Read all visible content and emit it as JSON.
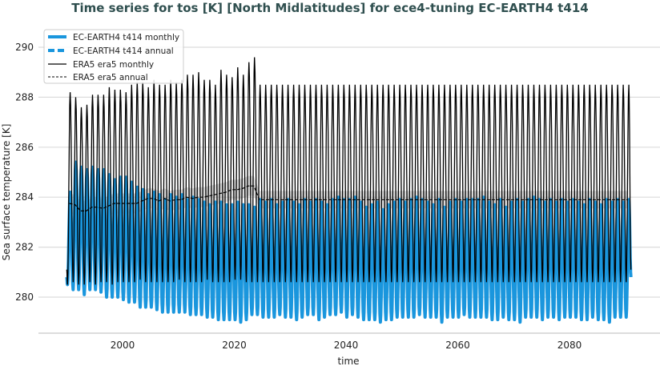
{
  "chart_data": {
    "type": "line",
    "title": "Time series for tos [K] [North Midlatitudes] for ece4-tuning EC-EARTH4 t414",
    "xlabel": "time",
    "ylabel": "Sea surface temperature [K]",
    "xlim": [
      1986,
      2097
    ],
    "ylim": [
      278.6,
      291.0
    ],
    "xticks": [
      "2000",
      "2020",
      "2040",
      "2060",
      "2080"
    ],
    "yticks": [
      "280",
      "282",
      "284",
      "286",
      "288",
      "290"
    ],
    "grid": "horizontal",
    "legend_position": "top-left",
    "colors": {
      "ece": "#1a96dd",
      "era5": "#000000",
      "title": "#2f4f4f"
    },
    "legend": [
      {
        "name": "EC-EARTH4 t414 monthly",
        "style": "solid-thick-blue"
      },
      {
        "name": "EC-EARTH4 t414 annual",
        "style": "dashed-thick-blue"
      },
      {
        "name": "ERA5 era5 monthly",
        "style": "solid-thin-black"
      },
      {
        "name": "ERA5 era5 annual",
        "style": "dashed-thin-black"
      }
    ],
    "year_start": 1990,
    "year_end": 2090,
    "series": [
      {
        "name": "EC-EARTH4 t414 monthly",
        "summary": "yearly seasonal maximum / minimum",
        "max": [
          284.2,
          285.4,
          285.2,
          285.1,
          285.2,
          285.1,
          285.1,
          284.9,
          284.7,
          284.8,
          284.8,
          284.6,
          284.4,
          284.3,
          284.1,
          284.2,
          284.1,
          283.9,
          284.1,
          284.0,
          284.1,
          283.9,
          284.0,
          283.9,
          283.8,
          283.7,
          283.8,
          283.8,
          283.7,
          283.7,
          283.8,
          283.7,
          283.7,
          283.6,
          283.9,
          283.8,
          283.9,
          283.7,
          283.8,
          283.9,
          283.8,
          283.7,
          283.9,
          283.8,
          283.9,
          283.8,
          283.7,
          283.9,
          284.0,
          283.9,
          283.9,
          284.0,
          283.8,
          283.6,
          283.7,
          283.8,
          283.5,
          283.7,
          283.8,
          283.9,
          283.8,
          283.9,
          284.0,
          283.9,
          283.8,
          283.7,
          283.9,
          283.6,
          283.8,
          283.9,
          283.8,
          283.9,
          283.9,
          283.9,
          284.0,
          283.8,
          283.7,
          283.9,
          283.6,
          283.8,
          283.9,
          283.8,
          283.9,
          284.0,
          283.9,
          283.8,
          283.9,
          283.8,
          283.9,
          283.8,
          283.9,
          283.8,
          283.7,
          283.9,
          283.8,
          283.7,
          283.9,
          283.8,
          283.9,
          283.8,
          283.9
        ],
        "min": [
          280.5,
          280.3,
          280.3,
          280.1,
          280.3,
          280.3,
          280.2,
          280.0,
          280.0,
          280.0,
          279.9,
          279.8,
          279.8,
          279.6,
          279.6,
          279.6,
          279.5,
          279.4,
          279.4,
          279.4,
          279.4,
          279.4,
          279.3,
          279.3,
          279.3,
          279.2,
          279.2,
          279.1,
          279.1,
          279.1,
          279.1,
          279.0,
          279.1,
          279.3,
          279.3,
          279.2,
          279.2,
          279.2,
          279.3,
          279.2,
          279.2,
          279.1,
          279.2,
          279.3,
          279.3,
          279.1,
          279.2,
          279.3,
          279.3,
          279.4,
          279.2,
          279.3,
          279.2,
          279.1,
          279.1,
          279.1,
          279.0,
          279.1,
          279.1,
          279.2,
          279.2,
          279.2,
          279.2,
          279.3,
          279.2,
          279.2,
          279.2,
          279.0,
          279.2,
          279.2,
          279.2,
          279.3,
          279.2,
          279.2,
          279.2,
          279.2,
          279.1,
          279.1,
          279.2,
          279.1,
          279.1,
          279.0,
          279.2,
          279.2,
          279.2,
          279.1,
          279.2,
          279.2,
          279.1,
          279.2,
          279.2,
          279.2,
          279.1,
          279.1,
          279.2,
          279.1,
          279.1,
          279.0,
          279.2,
          279.2,
          279.2
        ]
      },
      {
        "name": "ERA5 era5 monthly",
        "summary": "yearly seasonal maximum / minimum",
        "max": [
          288.2,
          288.0,
          287.6,
          287.7,
          288.1,
          288.1,
          288.1,
          288.4,
          288.3,
          288.3,
          288.2,
          288.5,
          288.6,
          288.6,
          288.4,
          288.7,
          288.5,
          288.5,
          288.7,
          288.6,
          288.7,
          288.9,
          288.9,
          289.0,
          288.7,
          288.7,
          288.5,
          289.1,
          288.9,
          288.8,
          289.2,
          288.9,
          289.4,
          289.6,
          288.5,
          288.5,
          288.5,
          288.5,
          288.5,
          288.5,
          288.5,
          288.5,
          288.5,
          288.5,
          288.5,
          288.5,
          288.5,
          288.5,
          288.5,
          288.5,
          288.5,
          288.5,
          288.5,
          288.5,
          288.5,
          288.5,
          288.5,
          288.5,
          288.5,
          288.5,
          288.5,
          288.5,
          288.5,
          288.5,
          288.5,
          288.5,
          288.5,
          288.5,
          288.5,
          288.5,
          288.5,
          288.5,
          288.5,
          288.5,
          288.5,
          288.5,
          288.5,
          288.5,
          288.5,
          288.5,
          288.5,
          288.5,
          288.5,
          288.5,
          288.5,
          288.5,
          288.5,
          288.5,
          288.5,
          288.5,
          288.5,
          288.5,
          288.5,
          288.5,
          288.5,
          288.5,
          288.5,
          288.5,
          288.5,
          288.5,
          288.5
        ],
        "min": [
          280.5,
          280.6,
          280.5,
          280.5,
          280.6,
          280.5,
          280.6,
          280.6,
          280.5,
          280.6,
          280.6,
          280.6,
          280.6,
          280.7,
          280.6,
          280.6,
          280.6,
          280.6,
          280.6,
          280.6,
          280.7,
          280.6,
          280.6,
          280.6,
          280.6,
          280.7,
          280.6,
          280.6,
          280.6,
          280.6,
          280.7,
          280.7,
          280.6,
          280.6,
          280.6,
          280.6,
          280.6,
          280.6,
          280.6,
          280.6,
          280.6,
          280.6,
          280.6,
          280.6,
          280.6,
          280.6,
          280.6,
          280.6,
          280.6,
          280.6,
          280.6,
          280.6,
          280.6,
          280.6,
          280.6,
          280.6,
          280.6,
          280.6,
          280.6,
          280.6,
          280.6,
          280.6,
          280.6,
          280.6,
          280.6,
          280.6,
          280.6,
          280.6,
          280.6,
          280.6,
          280.6,
          280.6,
          280.6,
          280.6,
          280.6,
          280.6,
          280.6,
          280.6,
          280.6,
          280.6,
          280.6,
          280.6,
          280.6,
          280.6,
          280.6,
          280.6,
          280.6,
          280.6,
          280.6,
          280.6,
          280.6,
          280.6,
          280.6,
          280.6,
          280.6,
          280.6,
          280.6,
          280.6,
          280.6,
          280.6,
          280.6
        ]
      },
      {
        "name": "ERA5 era5 annual",
        "values": [
          283.75,
          283.7,
          283.45,
          283.45,
          283.6,
          283.6,
          283.55,
          283.65,
          283.75,
          283.75,
          283.75,
          283.75,
          283.75,
          283.85,
          283.95,
          283.95,
          283.85,
          283.95,
          283.85,
          283.9,
          283.9,
          284.0,
          283.95,
          284.0,
          284.0,
          284.05,
          284.1,
          284.15,
          284.2,
          284.3,
          284.3,
          284.35,
          284.45,
          284.45,
          283.9,
          283.9,
          283.9,
          283.9,
          283.9,
          283.9,
          283.9,
          283.9,
          283.9,
          283.9,
          283.9,
          283.9,
          283.9,
          283.9,
          283.9,
          283.9,
          283.9,
          283.9,
          283.9,
          283.9,
          283.9,
          283.9,
          283.9,
          283.9,
          283.9,
          283.9,
          283.9,
          283.9,
          283.9,
          283.9,
          283.9,
          283.9,
          283.9,
          283.9,
          283.9,
          283.9,
          283.9,
          283.9,
          283.9,
          283.9,
          283.9,
          283.9,
          283.9,
          283.9,
          283.9,
          283.9,
          283.9,
          283.9,
          283.9,
          283.9,
          283.9,
          283.9,
          283.9,
          283.9,
          283.9,
          283.9,
          283.9,
          283.9,
          283.9,
          283.9,
          283.9,
          283.9,
          283.9,
          283.9,
          283.9,
          283.9,
          283.9
        ]
      }
    ]
  }
}
